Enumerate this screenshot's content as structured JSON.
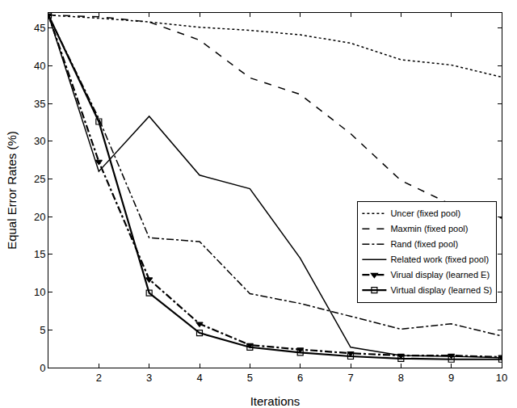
{
  "chart_data": {
    "type": "line",
    "x_label": "Iterations",
    "y_label": "Equal Error Rates (%)",
    "x": [
      1,
      2,
      3,
      4,
      5,
      6,
      7,
      8,
      9,
      10
    ],
    "xlim": [
      1,
      10
    ],
    "xticks": [
      2,
      3,
      4,
      5,
      6,
      7,
      8,
      9,
      10
    ],
    "ylim": [
      0,
      47
    ],
    "yticks": [
      0,
      5,
      10,
      15,
      20,
      25,
      30,
      35,
      40,
      45
    ],
    "grid": false,
    "legend": "right",
    "series": [
      {
        "name": "Uncer (fixed pool)",
        "color": "#000000",
        "line_style": "dot",
        "values": [
          46.7,
          46.3,
          45.8,
          45.1,
          44.7,
          44.1,
          43.0,
          40.8,
          40.1,
          38.5
        ]
      },
      {
        "name": "Maxmin (fixed pool)",
        "color": "#000000",
        "line_style": "dash",
        "values": [
          46.7,
          46.5,
          45.8,
          43.4,
          38.4,
          36.2,
          31.0,
          24.8,
          21.6,
          19.8
        ]
      },
      {
        "name": "Rand (fixed pool)",
        "color": "#000000",
        "line_style": "dashdot",
        "values": [
          46.7,
          33.0,
          17.2,
          16.7,
          9.8,
          8.5,
          6.8,
          5.1,
          5.8,
          4.2
        ]
      },
      {
        "name": "Related work (fixed pool)",
        "color": "#000000",
        "line_style": "solid",
        "values": [
          46.7,
          26.0,
          33.3,
          25.5,
          23.7,
          14.5,
          2.7,
          1.6,
          1.5,
          1.3
        ]
      },
      {
        "name": "Virual display (learned E)",
        "color": "#000000",
        "line_style": "dashdot",
        "marker": "triangle-down",
        "values": [
          46.7,
          27.3,
          11.7,
          5.8,
          3.0,
          2.4,
          1.9,
          1.6,
          1.6,
          1.4
        ]
      },
      {
        "name": "Virtual display (learned S)",
        "color": "#000000",
        "line_style": "solid",
        "marker": "square-open",
        "values": [
          46.7,
          32.6,
          9.9,
          4.6,
          2.7,
          2.0,
          1.5,
          1.2,
          1.1,
          1.1
        ]
      }
    ]
  }
}
